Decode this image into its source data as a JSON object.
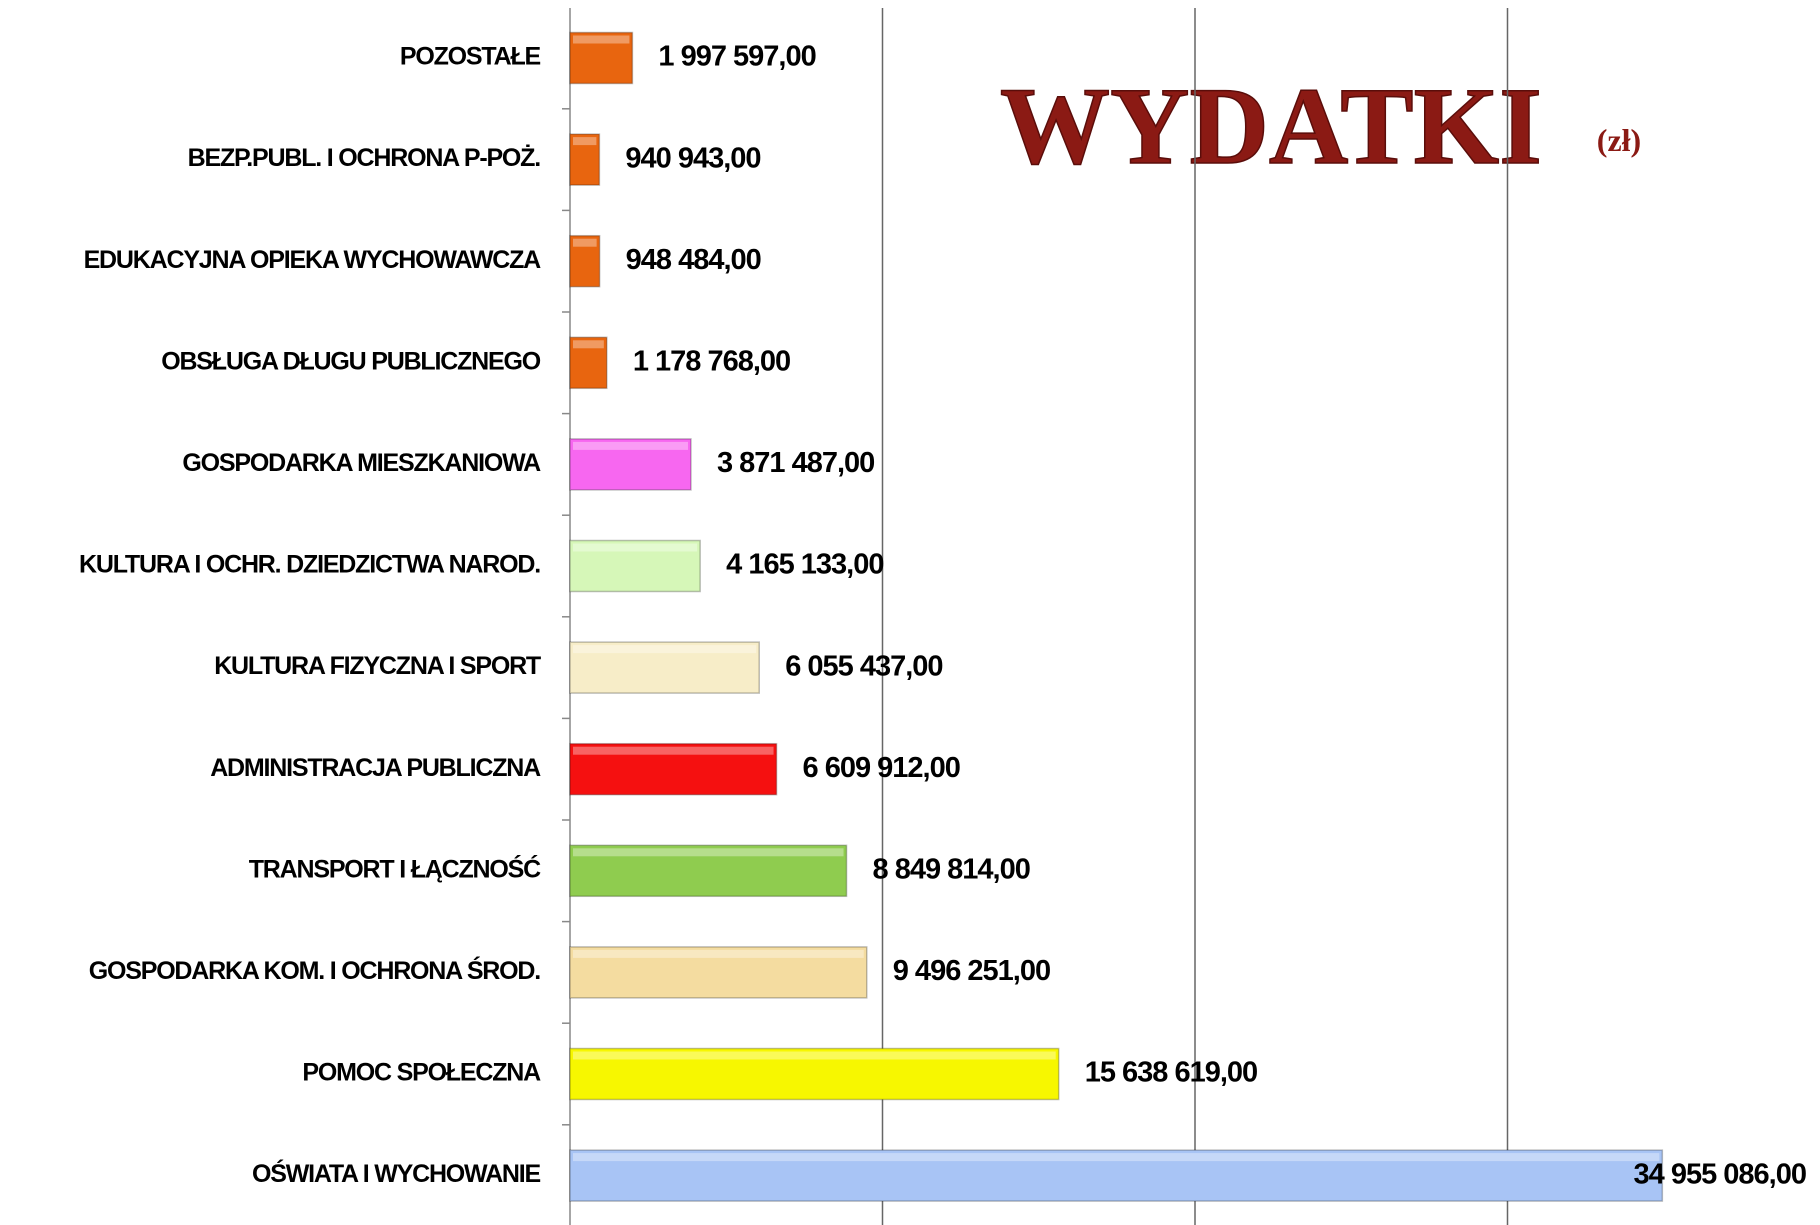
{
  "chart_data": {
    "type": "barh",
    "title": "WYDATKI",
    "subtitle": "(zł)",
    "categories": [
      "POZOSTAŁE",
      "BEZP.PUBL. I OCHRONA P-POŻ.",
      "EDUKACYJNA OPIEKA WYCHOWAWCZA",
      "OBSŁUGA DŁUGU PUBLICZNEGO",
      "GOSPODARKA MIESZKANIOWA",
      "KULTURA I OCHR. DZIEDZICTWA NAROD.",
      "KULTURA FIZYCZNA I SPORT",
      "ADMINISTRACJA PUBLICZNA",
      "TRANSPORT I ŁĄCZNOŚĆ",
      "GOSPODARKA KOM. I OCHRONA ŚROD.",
      "POMOC SPOŁECZNA",
      "OŚWIATA I WYCHOWANIE"
    ],
    "values": [
      1997597,
      940943,
      948484,
      1178768,
      3871487,
      4165133,
      6055437,
      6609912,
      8849814,
      9496251,
      15638619,
      34955086
    ],
    "value_labels": [
      "1 997 597,00",
      "940 943,00",
      "948 484,00",
      "1 178 768,00",
      "3 871 487,00",
      "4 165 133,00",
      "6 055 437,00",
      "6 609 912,00",
      "8 849 814,00",
      "9 496 251,00",
      "15 638 619,00",
      "34 955 086,00"
    ],
    "colors": [
      "#e8650f",
      "#e8650f",
      "#e8650f",
      "#e8650f",
      "#f767f0",
      "#d6f7b8",
      "#f7edc8",
      "#f51010",
      "#8fcc4f",
      "#f4dca0",
      "#f7f700",
      "#a8c4f5"
    ],
    "xlim": [
      0,
      40000000
    ],
    "xticks": [
      0,
      10000000,
      20000000,
      30000000
    ],
    "grid": true
  }
}
